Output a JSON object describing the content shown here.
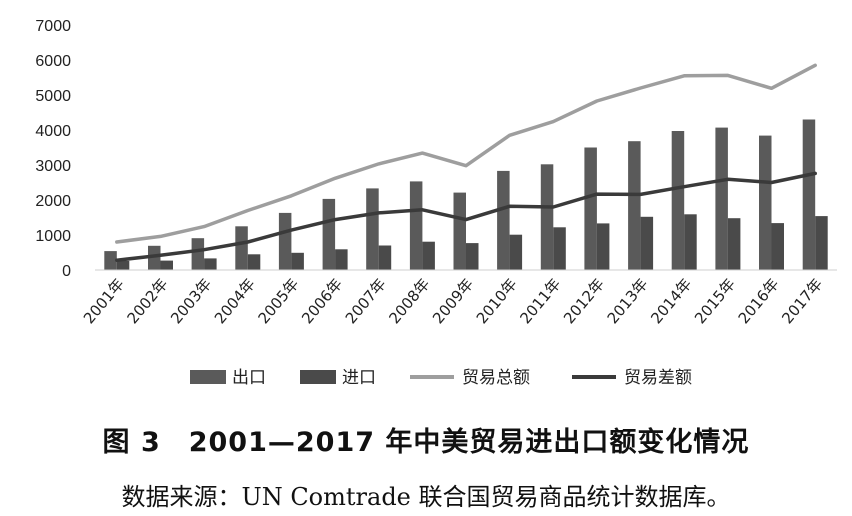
{
  "chart_data": {
    "type": "bar",
    "categories": [
      "2001年",
      "2002年",
      "2003年",
      "2004年",
      "2005年",
      "2006年",
      "2007年",
      "2008年",
      "2009年",
      "2010年",
      "2011年",
      "2012年",
      "2013年",
      "2014年",
      "2015年",
      "2016年",
      "2017年"
    ],
    "ylim": [
      0,
      7000
    ],
    "yticks": [
      0,
      1000,
      2000,
      3000,
      4000,
      5000,
      6000,
      7000
    ],
    "grid": false,
    "legend_position": "bottom",
    "series": [
      {
        "name": "出口",
        "kind": "bar",
        "color": "#5a5a5a",
        "values": [
          540,
          690,
          910,
          1250,
          1630,
          2030,
          2330,
          2530,
          2210,
          2830,
          3020,
          3500,
          3680,
          3970,
          4070,
          3840,
          4300
        ]
      },
      {
        "name": "进口",
        "kind": "bar",
        "color": "#4a4a4a",
        "values": [
          260,
          270,
          330,
          450,
          490,
          590,
          700,
          810,
          770,
          1010,
          1220,
          1330,
          1520,
          1590,
          1480,
          1340,
          1540
        ]
      },
      {
        "name": "贸易总额",
        "kind": "line",
        "color": "#9e9e9e",
        "values": [
          800,
          960,
          1240,
          1700,
          2120,
          2620,
          3030,
          3340,
          2980,
          3850,
          4240,
          4830,
          5200,
          5550,
          5560,
          5190,
          5850
        ]
      },
      {
        "name": "贸易差额",
        "kind": "line",
        "color": "#3a3a3a",
        "values": [
          280,
          420,
          580,
          800,
          1140,
          1440,
          1630,
          1720,
          1440,
          1820,
          1800,
          2170,
          2160,
          2380,
          2590,
          2500,
          2760
        ]
      }
    ]
  },
  "caption": "图 3　2001—2017 年中美贸易进出口额变化情况",
  "source": "数据来源：UN Comtrade 联合国贸易商品统计数据库。"
}
